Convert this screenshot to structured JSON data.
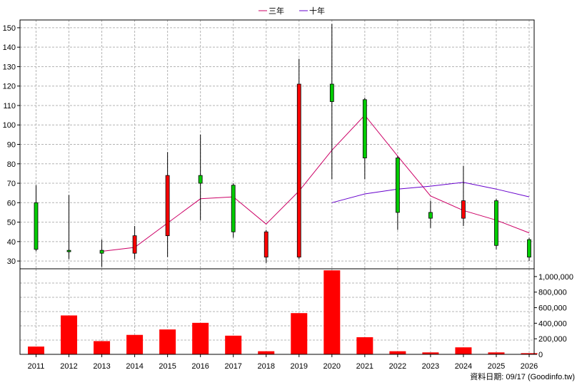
{
  "chart_data": {
    "type": "candlestick+bar",
    "legend": [
      {
        "name": "三年",
        "color": "#cc0066"
      },
      {
        "name": "十年",
        "color": "#6600cc"
      }
    ],
    "source_note": "資料日期: 09/17 (Goodinfo.tw)",
    "categories": [
      "2011",
      "2012",
      "2013",
      "2014",
      "2015",
      "2016",
      "2017",
      "2018",
      "2019",
      "2020",
      "2021",
      "2022",
      "2023",
      "2024",
      "2025",
      "2026"
    ],
    "price_axis": {
      "ylim": [
        26,
        154
      ],
      "ticks": [
        30,
        40,
        50,
        60,
        70,
        80,
        90,
        100,
        110,
        120,
        130,
        140,
        150
      ]
    },
    "candles": [
      {
        "year": "2011",
        "open": 36,
        "close": 60,
        "high": 69,
        "low": 35
      },
      {
        "year": "2012",
        "open": 35.5,
        "close": 35.5,
        "high": 64,
        "low": 31
      },
      {
        "year": "2013",
        "open": 34,
        "close": 35.5,
        "high": 41,
        "low": 27
      },
      {
        "year": "2014",
        "open": 43,
        "close": 34,
        "high": 48,
        "low": 31
      },
      {
        "year": "2015",
        "open": 74,
        "close": 43,
        "high": 86,
        "low": 32
      },
      {
        "year": "2016",
        "open": 70,
        "close": 74,
        "high": 95,
        "low": 51
      },
      {
        "year": "2017",
        "open": 45,
        "close": 69,
        "high": 70,
        "low": 42
      },
      {
        "year": "2018",
        "open": 45,
        "close": 32,
        "high": 46,
        "low": 29
      },
      {
        "year": "2019",
        "open": 121,
        "close": 32,
        "high": 134,
        "low": 31
      },
      {
        "year": "2020",
        "open": 112,
        "close": 121,
        "high": 152,
        "low": 72
      },
      {
        "year": "2021",
        "open": 83,
        "close": 113,
        "high": 114,
        "low": 72
      },
      {
        "year": "2022",
        "open": 55,
        "close": 83,
        "high": 84,
        "low": 46
      },
      {
        "year": "2023",
        "open": 52,
        "close": 55,
        "high": 61,
        "low": 47
      },
      {
        "year": "2024",
        "open": 61,
        "close": 52,
        "high": 79,
        "low": 48
      },
      {
        "year": "2025",
        "open": 38,
        "close": 61,
        "high": 62,
        "low": 36
      },
      {
        "year": "2026",
        "open": 32,
        "close": 41,
        "high": 42,
        "low": 30
      }
    ],
    "series": [
      {
        "name": "三年",
        "color": "#cc0066",
        "values": [
          null,
          null,
          35,
          37,
          49.5,
          62,
          63,
          49,
          66,
          87,
          105,
          84,
          63.5,
          56,
          51,
          44.5
        ]
      },
      {
        "name": "十年",
        "color": "#6600cc",
        "values": [
          null,
          null,
          null,
          null,
          null,
          null,
          null,
          null,
          null,
          60,
          64.5,
          67,
          68.5,
          70.5,
          67,
          63
        ]
      }
    ],
    "volume_axis": {
      "ylim": [
        0,
        1100000
      ],
      "ticks": [
        0,
        200000,
        400000,
        600000,
        800000,
        1000000
      ],
      "tick_labels": [
        "0",
        "200,000",
        "400,000",
        "600,000",
        "800,000",
        "1,000,000"
      ]
    },
    "volume": [
      100000,
      500000,
      170000,
      250000,
      320000,
      405000,
      240000,
      40000,
      530000,
      1080000,
      220000,
      40000,
      25000,
      90000,
      25000,
      15000
    ]
  }
}
